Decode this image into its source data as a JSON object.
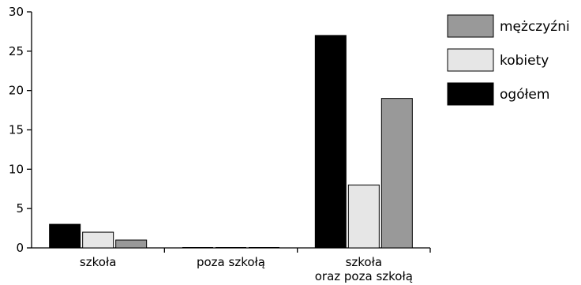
{
  "chart_data": {
    "type": "bar",
    "categories": [
      [
        "szkoła"
      ],
      [
        "poza szkołą"
      ],
      [
        "szkoła",
        "oraz poza szkołą"
      ]
    ],
    "series": [
      {
        "name": "ogółem",
        "color": "#000000",
        "values": [
          3,
          0,
          27
        ]
      },
      {
        "name": "kobiety",
        "color": "#e6e6e6",
        "values": [
          2,
          0,
          8
        ]
      },
      {
        "name": "mężczyźni",
        "color": "#999999",
        "values": [
          1,
          0,
          19
        ]
      }
    ],
    "legend_order": [
      "mężczyźni",
      "kobiety",
      "ogółem"
    ],
    "ylim": [
      0,
      30
    ],
    "yticks": [
      0,
      5,
      10,
      15,
      20,
      25,
      30
    ],
    "title": "",
    "xlabel": "",
    "ylabel": "",
    "grid": false,
    "legend_position": "top-right"
  }
}
